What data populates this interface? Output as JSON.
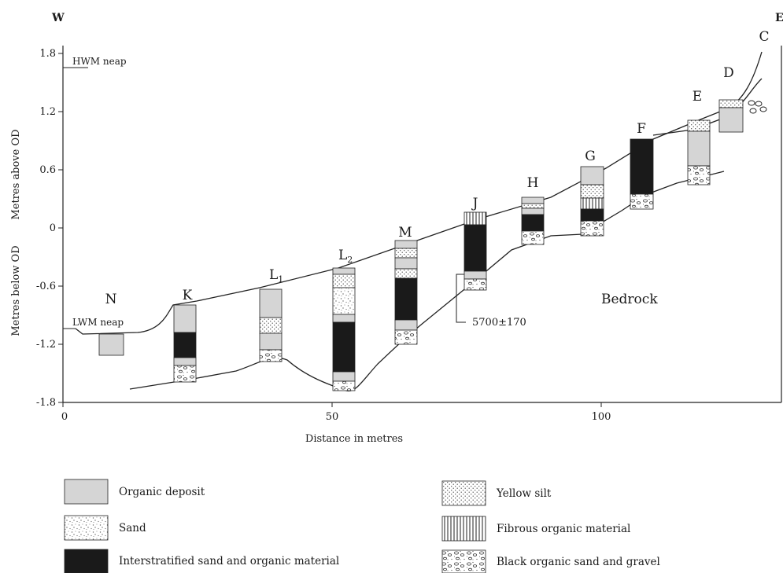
{
  "compass": {
    "west": "W",
    "east": "E"
  },
  "axes": {
    "y_ticks": [
      "1.8",
      "1.2",
      "0.6",
      "0",
      "-0.6",
      "-1.2",
      "-1.8"
    ],
    "x_ticks": [
      "0",
      "50",
      "100"
    ],
    "xlabel": "Distance in metres",
    "ylabel_upper": "Metres above OD",
    "ylabel_lower": "Metres below OD"
  },
  "water_levels": {
    "high": "HWM neap",
    "low": "LWM neap"
  },
  "bedrock_label": "Bedrock",
  "radiocarbon_date": "5700±170",
  "cores": [
    {
      "id": "N",
      "label": "N"
    },
    {
      "id": "K",
      "label": "K"
    },
    {
      "id": "L1",
      "label": "L",
      "sub": "1"
    },
    {
      "id": "L2",
      "label": "L",
      "sub": "2"
    },
    {
      "id": "M",
      "label": "M"
    },
    {
      "id": "J",
      "label": "J"
    },
    {
      "id": "H",
      "label": "H"
    },
    {
      "id": "G",
      "label": "G"
    },
    {
      "id": "F",
      "label": "F"
    },
    {
      "id": "E",
      "label": "E"
    },
    {
      "id": "D",
      "label": "D"
    },
    {
      "id": "C",
      "label": "C"
    }
  ],
  "legend": {
    "organic": "Organic deposit",
    "sand": "Sand",
    "interstratified": "Interstratified sand and organic material",
    "yellow_silt": "Yellow silt",
    "fibrous": "Fibrous organic material",
    "black_gravel": "Black organic sand and gravel"
  }
}
